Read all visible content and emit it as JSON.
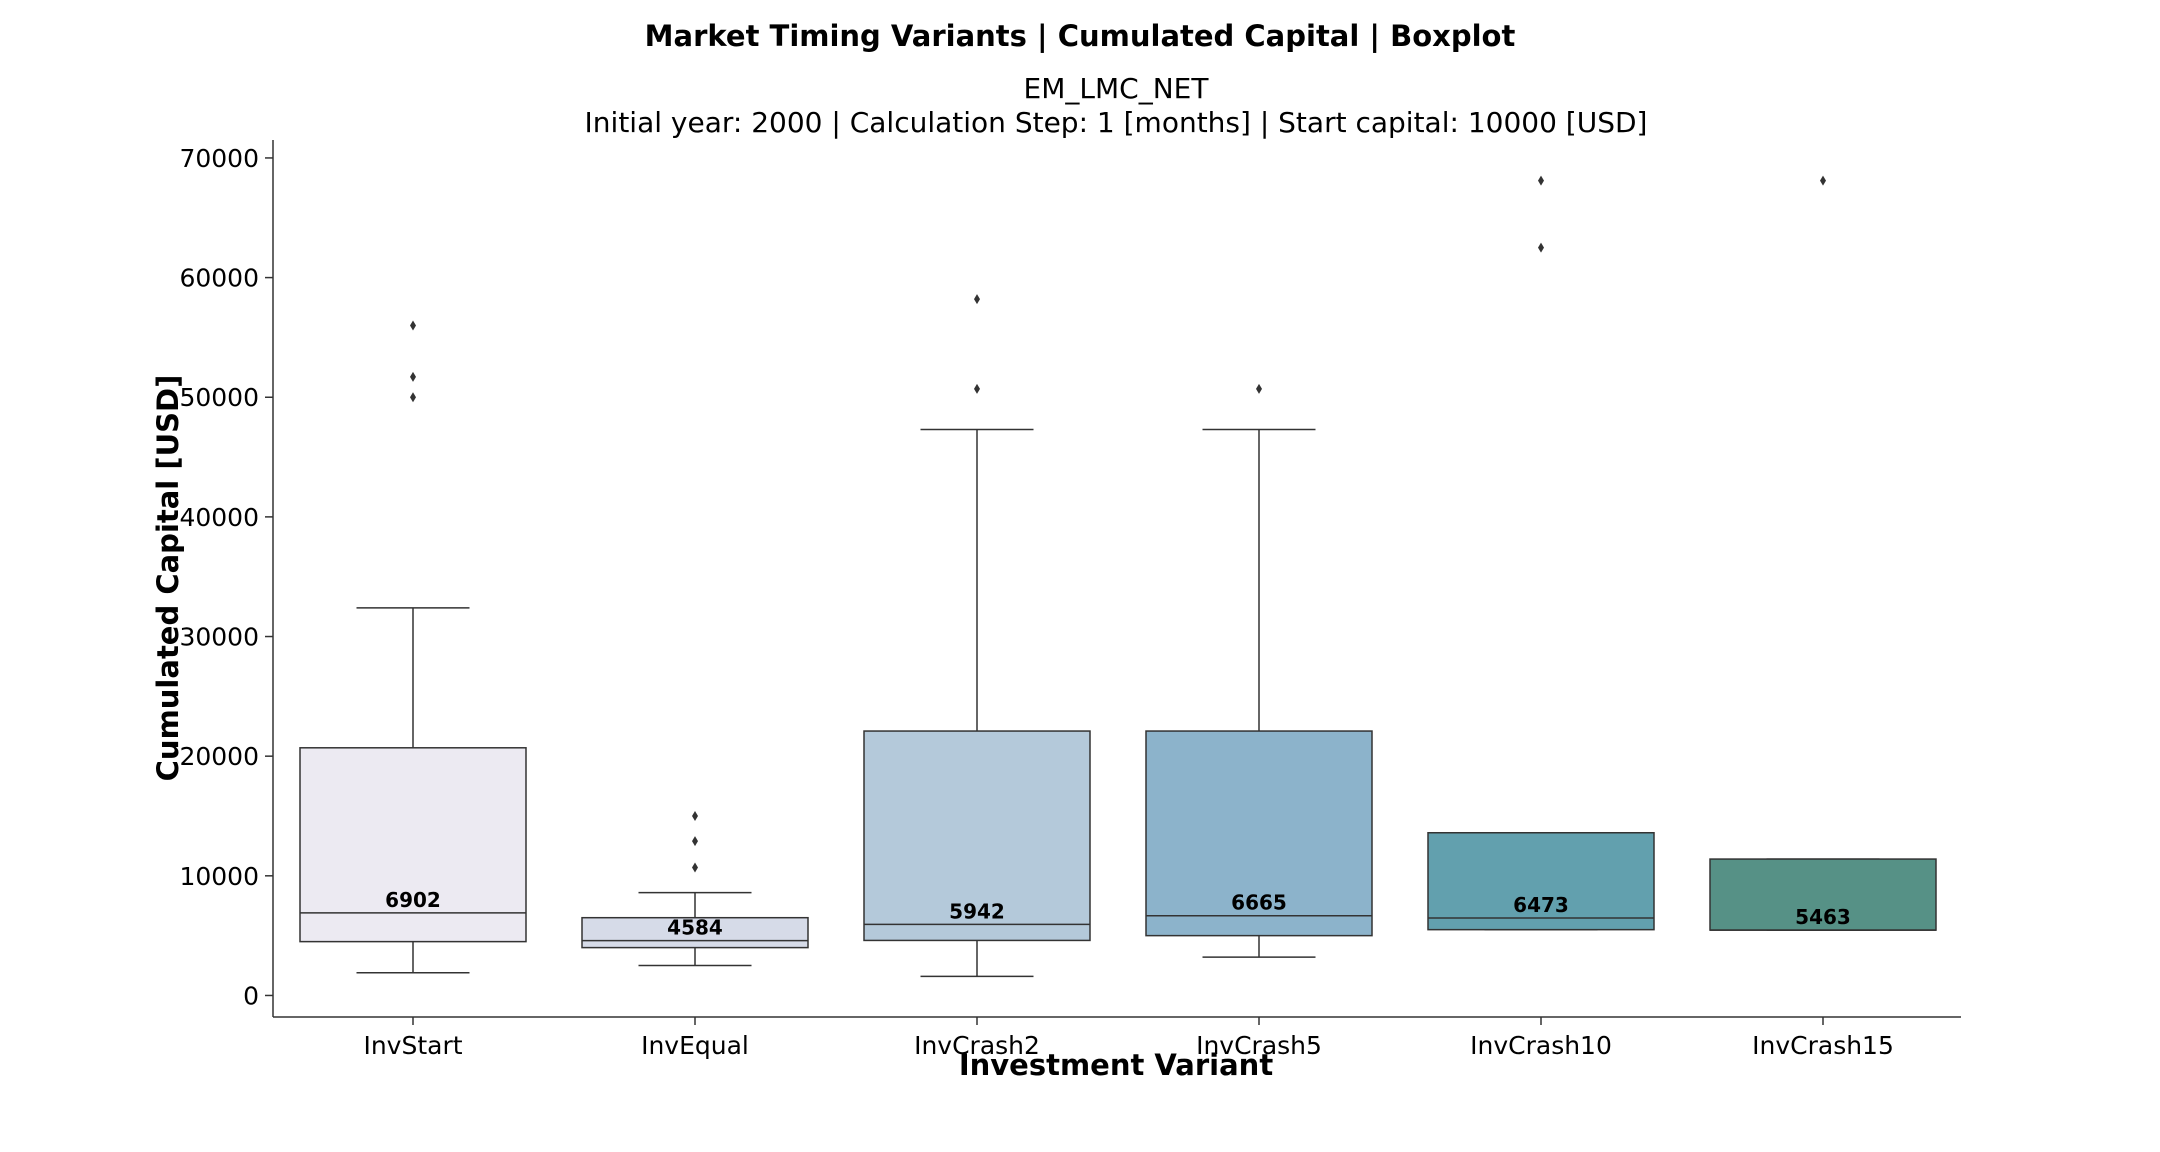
{
  "chart_data": {
    "type": "boxplot",
    "title": "Market Timing Variants | Cumulated Capital | Boxplot",
    "subtitle_line1": "EM_LMC_NET",
    "subtitle_line2": "Initial year: 2000 | Calculation Step: 1 [months] | Start capital: 10000 [USD]",
    "xlabel": "Investment Variant",
    "ylabel": "Cumulated Capital [USD]",
    "ylim": [
      -1800,
      71500
    ],
    "yticks": [
      0,
      10000,
      20000,
      30000,
      40000,
      50000,
      60000,
      70000
    ],
    "ytick_labels": [
      "0",
      "10000",
      "20000",
      "30000",
      "40000",
      "50000",
      "60000",
      "70000"
    ],
    "grid": false,
    "categories": [
      "InvStart",
      "InvEqual",
      "InvCrash2",
      "InvCrash5",
      "InvCrash10",
      "InvCrash15"
    ],
    "boxes": [
      {
        "name": "InvStart",
        "whisker_low": 1900,
        "q1": 4500,
        "median": 6902,
        "q3": 20700,
        "whisker_high": 32400,
        "outliers": [
          50000,
          51700,
          56000
        ],
        "median_label": "6902",
        "color": "#eceaf2"
      },
      {
        "name": "InvEqual",
        "whisker_low": 2500,
        "q1": 4000,
        "median": 4584,
        "q3": 6500,
        "whisker_high": 8600,
        "outliers": [
          10700,
          12900,
          15000
        ],
        "median_label": "4584",
        "color": "#d6dbe8"
      },
      {
        "name": "InvCrash2",
        "whisker_low": 1600,
        "q1": 4600,
        "median": 5942,
        "q3": 22100,
        "whisker_high": 47300,
        "outliers": [
          50700,
          58200
        ],
        "median_label": "5942",
        "color": "#b4c9da"
      },
      {
        "name": "InvCrash5",
        "whisker_low": 3200,
        "q1": 5000,
        "median": 6665,
        "q3": 22100,
        "whisker_high": 47300,
        "outliers": [
          50700
        ],
        "median_label": "6665",
        "color": "#8cb3cb"
      },
      {
        "name": "InvCrash10",
        "whisker_low": 5500,
        "q1": 5500,
        "median": 6473,
        "q3": 13600,
        "whisker_high": 13600,
        "outliers": [
          62500,
          68100
        ],
        "median_label": "6473",
        "color": "#62a0ae"
      },
      {
        "name": "InvCrash15",
        "whisker_low": 5463,
        "q1": 5463,
        "median": 5463,
        "q3": 11400,
        "whisker_high": 11400,
        "outliers": [
          68100
        ],
        "median_label": "5463",
        "color": "#569186"
      }
    ]
  }
}
